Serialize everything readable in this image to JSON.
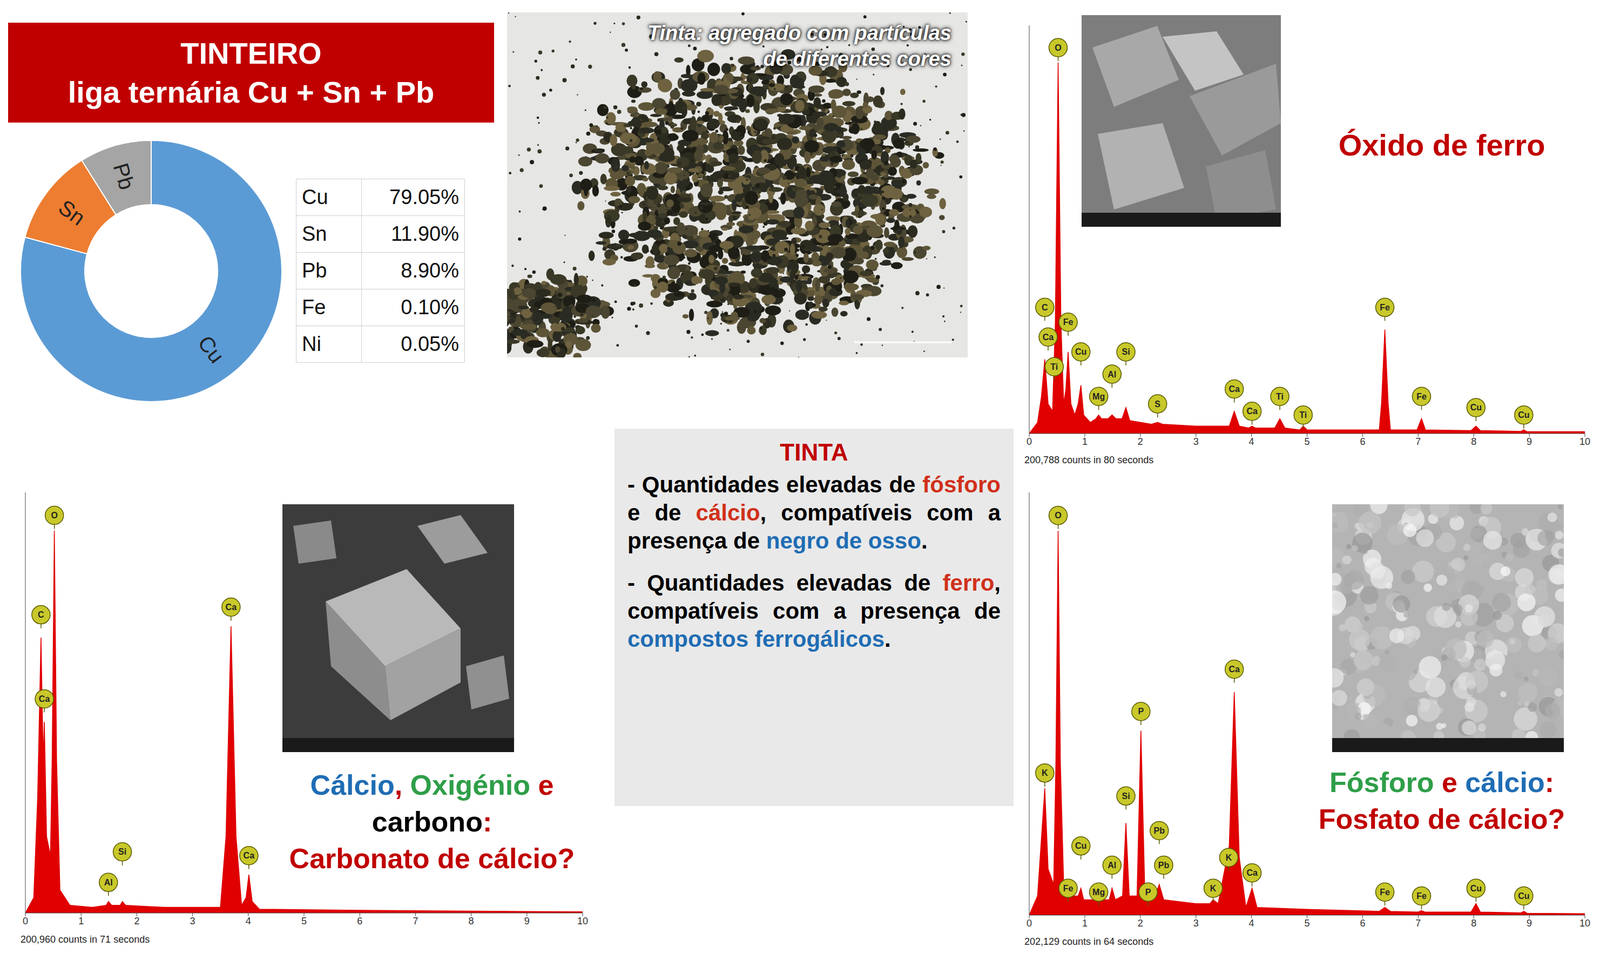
{
  "title": {
    "lines": [
      "TINTEIRO",
      "liga ternária Cu + Sn + Pb"
    ]
  },
  "table": {
    "rows": [
      [
        "Cu",
        "79.05%"
      ],
      [
        "Sn",
        "11.90%"
      ],
      [
        "Pb",
        "8.90%"
      ],
      [
        "Fe",
        "0.10%"
      ],
      [
        "Ni",
        "0.05%"
      ]
    ]
  },
  "photo": {
    "caption": [
      "Tinta: agregado com partículas",
      "de diferentes cores"
    ]
  },
  "text_box": {
    "title": "TINTA",
    "bullets": [
      [
        {
          "text": "- Quantidades elevadas de ",
          "color": "#000000"
        },
        {
          "text": "fósforo",
          "color": "#d0301a"
        },
        {
          "text": " e de ",
          "color": "#000000"
        },
        {
          "text": "cálcio",
          "color": "#d0301a"
        },
        {
          "text": ", compatíveis com a presença de ",
          "color": "#000000"
        },
        {
          "text": "negro de osso",
          "color": "#1f6db4"
        },
        {
          "text": ".",
          "color": "#000000"
        }
      ],
      [
        {
          "text": "- Quantidades elevadas de ",
          "color": "#000000"
        },
        {
          "text": "ferro",
          "color": "#d0301a"
        },
        {
          "text": ", compatíveis com a presença de ",
          "color": "#000000"
        },
        {
          "text": "compostos ferrogálicos",
          "color": "#1f6db4"
        },
        {
          "text": ".",
          "color": "#000000"
        }
      ]
    ]
  },
  "chart_data": [
    {
      "type": "donut",
      "categories": [
        "Cu",
        "Sn",
        "Pb"
      ],
      "values": [
        79.05,
        11.9,
        8.9
      ],
      "colors": [
        "#5b9bd5",
        "#ed7d31",
        "#a5a5a5"
      ]
    },
    {
      "type": "area",
      "color": "#e00000",
      "xlim": [
        0,
        10
      ],
      "xticks": [
        0,
        1,
        2,
        3,
        4,
        5,
        6,
        7,
        8,
        9,
        10
      ],
      "ylim": [
        0,
        110
      ],
      "tick_labels": "x",
      "footnote": "200,788 counts in 80 seconds",
      "caption": [
        [
          {
            "text": "Óxido de ferro",
            "color": "#c00000"
          }
        ]
      ],
      "x": [
        0,
        0.15,
        0.22,
        0.28,
        0.34,
        0.42,
        0.47,
        0.52,
        0.57,
        0.62,
        0.66,
        0.7,
        0.75,
        0.82,
        0.88,
        0.93,
        0.98,
        1.1,
        1.2,
        1.25,
        1.3,
        1.42,
        1.49,
        1.56,
        1.67,
        1.74,
        1.81,
        2.2,
        2.31,
        2.4,
        3.0,
        3.6,
        3.69,
        3.78,
        3.95,
        4.01,
        4.07,
        4.42,
        4.51,
        4.6,
        4.87,
        4.93,
        5.0,
        6.3,
        6.34,
        6.4,
        6.46,
        6.5,
        6.98,
        7.06,
        7.13,
        7.95,
        8.04,
        8.12,
        8.85,
        8.9,
        8.96,
        10
      ],
      "values": [
        0,
        3,
        10,
        20,
        8,
        6,
        30,
        100,
        30,
        8,
        12,
        22,
        8,
        5,
        8,
        13,
        5,
        3,
        4,
        5,
        4,
        4,
        5,
        4,
        4,
        7,
        3.5,
        2.5,
        3,
        2.5,
        2,
        2,
        6,
        2,
        1.5,
        2,
        1.5,
        1.5,
        4,
        1.5,
        1,
        2,
        1,
        1,
        8,
        28,
        8,
        1,
        1,
        4,
        1,
        0.8,
        2,
        0.8,
        0.6,
        1,
        0.5,
        0.5
      ],
      "peak_labels": [
        {
          "label": "O",
          "x": 0.52,
          "y": 104
        },
        {
          "label": "C",
          "x": 0.28,
          "y": 34
        },
        {
          "label": "Ca",
          "x": 0.34,
          "y": 26
        },
        {
          "label": "Ti",
          "x": 0.45,
          "y": 18
        },
        {
          "label": "Fe",
          "x": 0.7,
          "y": 30
        },
        {
          "label": "Cu",
          "x": 0.93,
          "y": 22
        },
        {
          "label": "Mg",
          "x": 1.25,
          "y": 10
        },
        {
          "label": "Al",
          "x": 1.49,
          "y": 16
        },
        {
          "label": "Si",
          "x": 1.74,
          "y": 22
        },
        {
          "label": "S",
          "x": 2.31,
          "y": 8
        },
        {
          "label": "Ca",
          "x": 3.69,
          "y": 12
        },
        {
          "label": "Ca",
          "x": 4.01,
          "y": 6
        },
        {
          "label": "Ti",
          "x": 4.51,
          "y": 10
        },
        {
          "label": "Ti",
          "x": 4.93,
          "y": 5
        },
        {
          "label": "Fe",
          "x": 6.4,
          "y": 34
        },
        {
          "label": "Fe",
          "x": 7.06,
          "y": 10
        },
        {
          "label": "Cu",
          "x": 8.04,
          "y": 7
        },
        {
          "label": "Cu",
          "x": 8.9,
          "y": 5
        }
      ]
    },
    {
      "type": "area",
      "color": "#e00000",
      "xlim": [
        0,
        10
      ],
      "xticks": [
        0,
        1,
        2,
        3,
        4,
        5,
        6,
        7,
        8,
        9,
        10
      ],
      "ylim": [
        0,
        110
      ],
      "tick_labels": "x",
      "footnote": "200,960 counts in 71 seconds",
      "caption": [
        [
          {
            "text": "Cálcio",
            "color": "#1f6db4"
          },
          {
            "text": ",",
            "color": "#c00000"
          },
          {
            "text": " Oxigénio",
            "color": "#2e9e48"
          },
          {
            "text": " e",
            "color": "#c00000"
          }
        ],
        [
          {
            "text": "carbono",
            "color": "#000000"
          },
          {
            "text": ":",
            "color": "#c00000"
          }
        ],
        [
          {
            "text": "Carbonato de cálcio?",
            "color": "#c00000"
          }
        ]
      ],
      "x": [
        0,
        0.15,
        0.22,
        0.28,
        0.32,
        0.34,
        0.38,
        0.45,
        0.48,
        0.52,
        0.56,
        0.62,
        0.8,
        1.2,
        1.45,
        1.49,
        1.55,
        1.7,
        1.74,
        1.8,
        2.5,
        3.5,
        3.6,
        3.69,
        3.78,
        3.88,
        3.96,
        4.01,
        4.07,
        4.2,
        6,
        8,
        10
      ],
      "values": [
        0,
        4,
        30,
        72,
        40,
        50,
        20,
        15,
        40,
        100,
        40,
        6,
        2,
        1.5,
        2,
        3,
        2,
        2,
        3,
        2,
        1.5,
        1.5,
        20,
        75,
        20,
        2,
        4,
        10,
        3,
        1,
        0.7,
        0.5,
        0.3
      ],
      "peak_labels": [
        {
          "label": "O",
          "x": 0.52,
          "y": 104
        },
        {
          "label": "C",
          "x": 0.28,
          "y": 78
        },
        {
          "label": "Ca",
          "x": 0.34,
          "y": 56
        },
        {
          "label": "Al",
          "x": 1.49,
          "y": 8
        },
        {
          "label": "Si",
          "x": 1.74,
          "y": 16
        },
        {
          "label": "Ca",
          "x": 3.69,
          "y": 80
        },
        {
          "label": "Ca",
          "x": 4.01,
          "y": 15
        }
      ]
    },
    {
      "type": "area",
      "color": "#e00000",
      "xlim": [
        0,
        10
      ],
      "xticks": [
        0,
        1,
        2,
        3,
        4,
        5,
        6,
        7,
        8,
        9,
        10
      ],
      "ylim": [
        0,
        110
      ],
      "tick_labels": "x",
      "footnote": "202,129 counts in 64 seconds",
      "caption": [
        [
          {
            "text": "Fósforo",
            "color": "#2e9e48"
          },
          {
            "text": " e ",
            "color": "#c00000"
          },
          {
            "text": "cálcio",
            "color": "#1f6db4"
          },
          {
            "text": ":",
            "color": "#c00000"
          }
        ],
        [
          {
            "text": "Fosfato de cálcio?",
            "color": "#c00000"
          }
        ]
      ],
      "x": [
        0,
        0.15,
        0.22,
        0.28,
        0.34,
        0.44,
        0.48,
        0.52,
        0.56,
        0.62,
        0.7,
        0.88,
        0.93,
        0.98,
        1.2,
        1.25,
        1.3,
        1.44,
        1.49,
        1.55,
        1.68,
        1.74,
        1.8,
        1.94,
        2.01,
        2.08,
        2.14,
        2.2,
        2.29,
        2.34,
        2.42,
        3.0,
        3.25,
        3.31,
        3.4,
        3.6,
        3.69,
        3.78,
        3.9,
        4.01,
        4.1,
        5,
        6.3,
        6.4,
        6.5,
        7.0,
        7.06,
        7.12,
        7.95,
        8.04,
        8.12,
        8.85,
        8.9,
        8.96,
        10
      ],
      "values": [
        0,
        5,
        20,
        33,
        12,
        8,
        40,
        100,
        40,
        8,
        5,
        5,
        7,
        4,
        4,
        5,
        4,
        4,
        7,
        4,
        5,
        24,
        5,
        5,
        48,
        6,
        8,
        5,
        6,
        8,
        4,
        3,
        3,
        4,
        3,
        18,
        58,
        15,
        2,
        7,
        2,
        1.5,
        1,
        2,
        1,
        0.8,
        1.2,
        0.8,
        0.8,
        3,
        0.8,
        0.6,
        1,
        0.5,
        0.4
      ],
      "peak_labels": [
        {
          "label": "O",
          "x": 0.52,
          "y": 104
        },
        {
          "label": "K",
          "x": 0.28,
          "y": 37
        },
        {
          "label": "Fe",
          "x": 0.7,
          "y": 7
        },
        {
          "label": "Cu",
          "x": 0.93,
          "y": 18
        },
        {
          "label": "Mg",
          "x": 1.25,
          "y": 6
        },
        {
          "label": "Al",
          "x": 1.49,
          "y": 13
        },
        {
          "label": "Si",
          "x": 1.74,
          "y": 31
        },
        {
          "label": "P",
          "x": 2.01,
          "y": 53
        },
        {
          "label": "P",
          "x": 2.14,
          "y": 6
        },
        {
          "label": "Pb",
          "x": 2.34,
          "y": 22
        },
        {
          "label": "Pb",
          "x": 2.42,
          "y": 13
        },
        {
          "label": "K",
          "x": 3.31,
          "y": 7
        },
        {
          "label": "K",
          "x": 3.59,
          "y": 15
        },
        {
          "label": "Ca",
          "x": 3.69,
          "y": 64
        },
        {
          "label": "Ca",
          "x": 4.01,
          "y": 11
        },
        {
          "label": "Fe",
          "x": 6.4,
          "y": 6
        },
        {
          "label": "Fe",
          "x": 7.06,
          "y": 5
        },
        {
          "label": "Cu",
          "x": 8.04,
          "y": 7
        },
        {
          "label": "Cu",
          "x": 8.9,
          "y": 5
        }
      ]
    }
  ]
}
